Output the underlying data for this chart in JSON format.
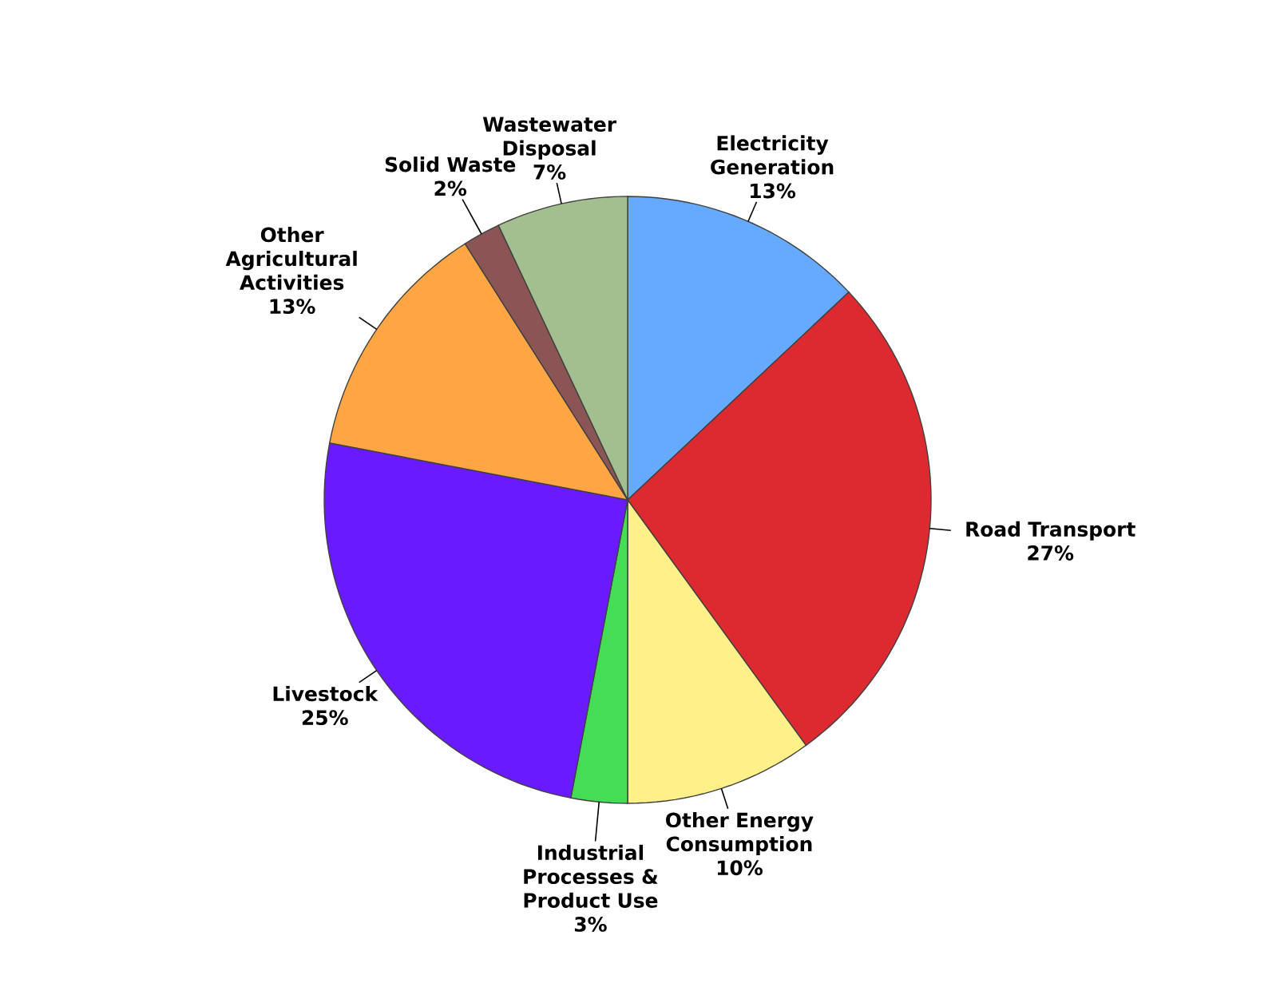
{
  "chart_data": {
    "type": "pie",
    "categories": [
      "Electricity Generation",
      "Road Transport",
      "Other Energy Consumption",
      "Industrial Processes & Product Use",
      "Livestock",
      "Other Agricultural Activities",
      "Solid Waste",
      "Wastewater Disposal"
    ],
    "values": [
      13,
      27,
      10,
      3,
      25,
      13,
      2,
      7
    ],
    "value_labels": [
      "13%",
      "27%",
      "10%",
      "3%",
      "25%",
      "13%",
      "2%",
      "7%"
    ],
    "colors": [
      "#66aaff",
      "#dd2a30",
      "#fff08a",
      "#44dd55",
      "#6a1aff",
      "#ffa544",
      "#8b5555",
      "#a3bf8f"
    ]
  }
}
